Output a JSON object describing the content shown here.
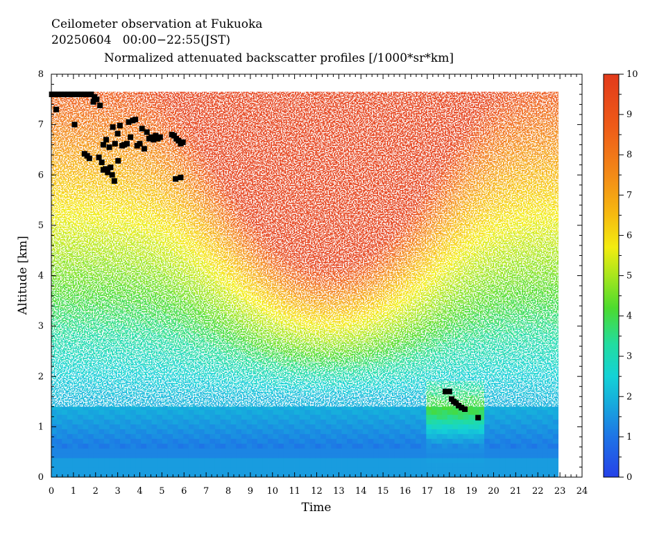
{
  "header": {
    "line1": "Ceilometer observation at Fukuoka",
    "line2": "20250604   00:00−22:55(JST)",
    "line3": "Normalized attenuated backscatter profiles [/1000*sr*km]"
  },
  "chart_data": {
    "type": "heatmap",
    "title": "Normalized attenuated backscatter profiles [/1000*sr*km]",
    "xlabel": "Time",
    "ylabel": "Altitude [km]",
    "xlim": [
      0,
      24
    ],
    "ylim": [
      0,
      8
    ],
    "data_x_range": [
      0,
      22.92
    ],
    "data_y_range": [
      0,
      7.65
    ],
    "x_ticks": [
      "0",
      "1",
      "2",
      "3",
      "4",
      "5",
      "6",
      "7",
      "8",
      "9",
      "10",
      "11",
      "12",
      "13",
      "14",
      "15",
      "16",
      "17",
      "18",
      "19",
      "20",
      "21",
      "22",
      "23",
      "24"
    ],
    "y_ticks": [
      "0",
      "1",
      "2",
      "3",
      "4",
      "5",
      "6",
      "7",
      "8"
    ],
    "colorbar": {
      "range": [
        0,
        10
      ],
      "ticks": [
        "0",
        "1",
        "2",
        "3",
        "4",
        "5",
        "6",
        "7",
        "8",
        "9",
        "10"
      ],
      "colors": [
        "#2541e8",
        "#1e74e6",
        "#17a9dd",
        "#14d2d6",
        "#22dca0",
        "#4cdb2e",
        "#a8e61d",
        "#f3ec10",
        "#f6bb10",
        "#f38a17",
        "#ee5b18",
        "#e23a1b"
      ]
    },
    "cloud_base_color": "#000000",
    "cloud_base_points": [
      [
        0.02,
        7.6
      ],
      [
        0.15,
        7.6
      ],
      [
        0.3,
        7.6
      ],
      [
        0.45,
        7.6
      ],
      [
        0.6,
        7.6
      ],
      [
        0.75,
        7.6
      ],
      [
        0.9,
        7.6
      ],
      [
        1.05,
        7.6
      ],
      [
        1.2,
        7.6
      ],
      [
        1.35,
        7.6
      ],
      [
        1.5,
        7.6
      ],
      [
        1.65,
        7.6
      ],
      [
        1.8,
        7.6
      ],
      [
        1.95,
        7.55
      ],
      [
        2.05,
        7.5
      ],
      [
        1.9,
        7.45
      ],
      [
        2.2,
        7.38
      ],
      [
        0.22,
        7.3
      ],
      [
        1.05,
        7.0
      ],
      [
        1.5,
        6.42
      ],
      [
        1.62,
        6.38
      ],
      [
        1.72,
        6.33
      ],
      [
        2.15,
        6.35
      ],
      [
        2.28,
        6.25
      ],
      [
        2.35,
        6.1
      ],
      [
        2.45,
        6.12
      ],
      [
        2.55,
        6.05
      ],
      [
        2.68,
        6.15
      ],
      [
        2.75,
        6.0
      ],
      [
        2.85,
        5.88
      ],
      [
        3.02,
        6.28
      ],
      [
        2.35,
        6.6
      ],
      [
        2.48,
        6.7
      ],
      [
        2.62,
        6.55
      ],
      [
        2.78,
        6.95
      ],
      [
        2.88,
        6.62
      ],
      [
        3.0,
        6.82
      ],
      [
        3.1,
        6.98
      ],
      [
        3.2,
        6.58
      ],
      [
        3.3,
        6.6
      ],
      [
        3.42,
        6.62
      ],
      [
        3.5,
        7.05
      ],
      [
        3.58,
        6.75
      ],
      [
        3.68,
        7.08
      ],
      [
        3.8,
        7.1
      ],
      [
        3.88,
        6.58
      ],
      [
        4.0,
        6.62
      ],
      [
        4.1,
        6.92
      ],
      [
        4.2,
        6.52
      ],
      [
        4.32,
        6.85
      ],
      [
        4.42,
        6.72
      ],
      [
        4.52,
        6.75
      ],
      [
        4.62,
        6.7
      ],
      [
        4.72,
        6.78
      ],
      [
        4.82,
        6.72
      ],
      [
        4.92,
        6.75
      ],
      [
        5.45,
        6.8
      ],
      [
        5.55,
        6.78
      ],
      [
        5.65,
        6.72
      ],
      [
        5.75,
        6.68
      ],
      [
        5.85,
        6.62
      ],
      [
        5.95,
        6.65
      ],
      [
        5.62,
        5.92
      ],
      [
        5.85,
        5.95
      ],
      [
        17.82,
        1.7
      ],
      [
        18.0,
        1.7
      ],
      [
        18.1,
        1.55
      ],
      [
        18.2,
        1.5
      ],
      [
        18.3,
        1.47
      ],
      [
        18.42,
        1.42
      ],
      [
        18.55,
        1.38
      ],
      [
        18.7,
        1.35
      ],
      [
        19.3,
        1.18
      ]
    ]
  }
}
